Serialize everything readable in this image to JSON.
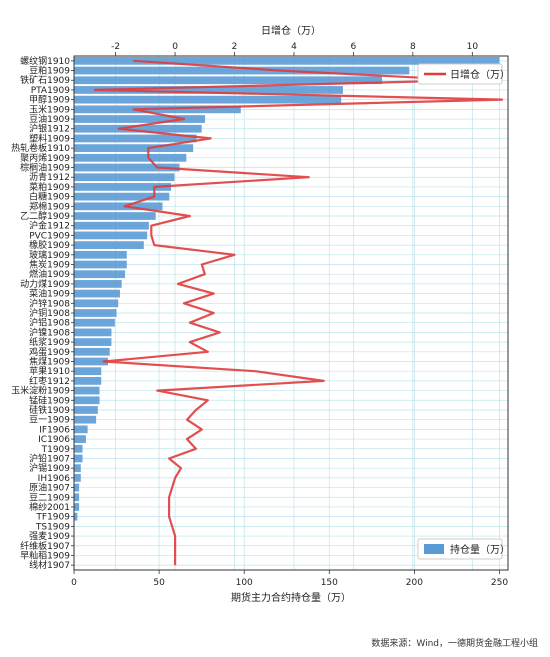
{
  "chart_data": {
    "type": "bar",
    "orientation": "horizontal",
    "xlabel": "期货主力合约持仓量（万）",
    "x2label": "日增仓（万）",
    "xlim": [
      0,
      255
    ],
    "x2lim": [
      -3.4,
      11.2
    ],
    "xticks": [
      0,
      50,
      100,
      150,
      200,
      250
    ],
    "x2ticks": [
      -2,
      0,
      2,
      4,
      6,
      8,
      10
    ],
    "grid": true,
    "legend_line_position": "top-right",
    "legend_bar_position": "bottom-right",
    "categories": [
      "螺纹钢1910",
      "豆粕1909",
      "铁矿石1909",
      "PTA1909",
      "甲醇1909",
      "玉米1909",
      "豆油1909",
      "沪银1912",
      "塑料1909",
      "热轧卷板1910",
      "聚丙烯1909",
      "棕榈油1909",
      "沥青1912",
      "菜粕1909",
      "白糖1909",
      "郑棉1909",
      "乙二醇1909",
      "沪金1912",
      "PVC1909",
      "橡胶1909",
      "玻璃1909",
      "焦炭1909",
      "燃油1909",
      "动力煤1909",
      "菜油1909",
      "沪锌1908",
      "沪铜1908",
      "沪铝1908",
      "沪镍1908",
      "纸浆1909",
      "鸡蛋1909",
      "焦煤1909",
      "苹果1910",
      "红枣1912",
      "玉米淀粉1909",
      "锰硅1909",
      "硅铁1909",
      "豆一1909",
      "IF1906",
      "IC1906",
      "T1909",
      "沪铅1907",
      "沪锡1909",
      "IH1906",
      "原油1907",
      "豆二1909",
      "棉纱2001",
      "TF1909",
      "TS1909",
      "强麦1909",
      "纤维板1907",
      "早籼稻1909",
      "线材1907"
    ],
    "series": [
      {
        "name": "持仓量（万）",
        "type": "bar",
        "color": "#5b9bd5",
        "values": [
          250,
          197,
          181,
          158,
          157,
          98,
          77,
          75,
          72,
          70,
          66,
          62,
          59,
          57,
          56,
          52,
          48,
          44,
          43,
          41,
          31,
          31,
          30,
          28,
          27,
          26,
          25,
          24,
          22,
          22,
          21,
          20,
          16,
          16,
          15,
          15,
          14,
          13,
          8,
          7,
          5,
          5,
          4,
          4,
          3,
          3,
          3,
          2,
          0.3,
          0.2,
          0.2,
          0.2,
          0.1
        ]
      },
      {
        "name": "日增仓（万）",
        "type": "line",
        "color": "#e03c3c",
        "values": [
          -1.4,
          3.5,
          9.9,
          -2.7,
          11.0,
          -1.4,
          0.3,
          -1.9,
          1.2,
          -0.9,
          -0.9,
          -0.6,
          4.5,
          -0.7,
          -0.7,
          -1.7,
          0.5,
          -0.8,
          -0.8,
          -0.7,
          2.0,
          0.9,
          1.0,
          0.1,
          1.3,
          0.3,
          1.3,
          0.5,
          1.5,
          0.5,
          1.1,
          -2.4,
          2.7,
          5.0,
          -0.6,
          1.1,
          0.7,
          0.4,
          0.9,
          0.4,
          0.7,
          -0.2,
          0.2,
          0.0,
          -0.1,
          -0.2,
          -0.2,
          -0.2,
          -0.1,
          0.0,
          0.0,
          0.0,
          0.0
        ]
      }
    ]
  },
  "source_text": "数据来源：Wind，一德期货金融工程小组"
}
